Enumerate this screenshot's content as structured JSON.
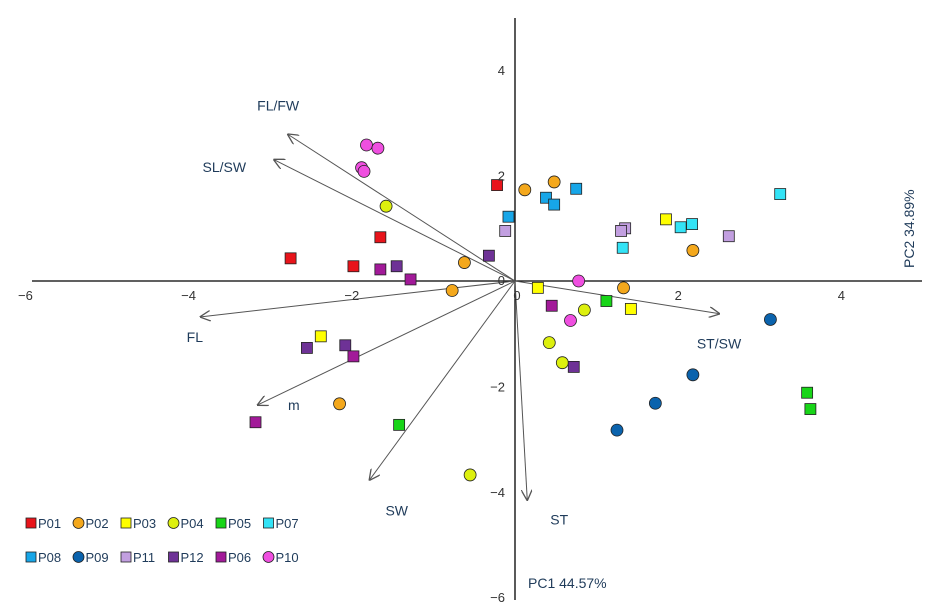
{
  "chart_data": {
    "type": "scatter",
    "title": "",
    "xlabel": "PC1 44.57%",
    "ylabel": "PC2 34.89%",
    "xlim": [
      -6,
      5
    ],
    "ylim": [
      -6,
      5
    ],
    "x_ticks": [
      "−6",
      "−4",
      "−2",
      "0",
      "2",
      "4"
    ],
    "y_ticks": [
      "4",
      "2",
      "0",
      "−2",
      "−4",
      "−6"
    ],
    "grid": false,
    "legend_position": "bottom-left",
    "series": [
      {
        "name": "P01",
        "marker": "square",
        "color": "#e8141b",
        "points": [
          [
            -2.75,
            0.43
          ],
          [
            -1.98,
            0.28
          ],
          [
            -1.65,
            0.83
          ],
          [
            -0.22,
            1.82
          ]
        ]
      },
      {
        "name": "P02",
        "marker": "circle",
        "color": "#f4a81c",
        "points": [
          [
            0.12,
            1.73
          ],
          [
            0.48,
            1.88
          ],
          [
            -0.62,
            0.35
          ],
          [
            -0.77,
            -0.18
          ],
          [
            1.33,
            -0.13
          ],
          [
            2.18,
            0.58
          ],
          [
            -2.15,
            -2.33
          ]
        ]
      },
      {
        "name": "P03",
        "marker": "square",
        "color": "#ffff00",
        "points": [
          [
            0.28,
            -0.13
          ],
          [
            1.42,
            -0.53
          ],
          [
            1.85,
            1.17
          ],
          [
            -2.38,
            -1.05
          ]
        ]
      },
      {
        "name": "P04",
        "marker": "circle",
        "color": "#ddf00e",
        "points": [
          [
            -1.58,
            1.42
          ],
          [
            0.85,
            -0.55
          ],
          [
            0.42,
            -1.17
          ],
          [
            0.58,
            -1.55
          ],
          [
            -0.55,
            -3.68
          ]
        ]
      },
      {
        "name": "P05",
        "marker": "square",
        "color": "#18d518",
        "points": [
          [
            1.12,
            -0.38
          ],
          [
            -1.42,
            -2.73
          ],
          [
            3.58,
            -2.12
          ],
          [
            3.62,
            -2.43
          ]
        ]
      },
      {
        "name": "P07",
        "marker": "square",
        "color": "#33e3f6",
        "points": [
          [
            1.32,
            0.63
          ],
          [
            2.03,
            1.02
          ],
          [
            2.17,
            1.08
          ],
          [
            3.25,
            1.65
          ]
        ]
      },
      {
        "name": "P08",
        "marker": "square",
        "color": "#17a6e8",
        "points": [
          [
            -0.08,
            1.22
          ],
          [
            0.38,
            1.58
          ],
          [
            0.48,
            1.45
          ],
          [
            0.75,
            1.75
          ]
        ]
      },
      {
        "name": "P09",
        "marker": "circle",
        "color": "#0b63ad",
        "points": [
          [
            3.13,
            -0.73
          ],
          [
            2.18,
            -1.78
          ],
          [
            1.72,
            -2.32
          ],
          [
            1.25,
            -2.83
          ]
        ]
      },
      {
        "name": "P11",
        "marker": "square",
        "color": "#c29fe0",
        "points": [
          [
            -0.12,
            0.95
          ],
          [
            1.35,
            1.0
          ],
          [
            1.3,
            0.95
          ],
          [
            2.62,
            0.85
          ]
        ]
      },
      {
        "name": "P12",
        "marker": "square",
        "color": "#6e3296",
        "points": [
          [
            -0.32,
            0.48
          ],
          [
            -1.45,
            0.28
          ],
          [
            -2.55,
            -1.27
          ],
          [
            -2.08,
            -1.22
          ],
          [
            0.72,
            -1.63
          ]
        ]
      },
      {
        "name": "P06",
        "marker": "square",
        "color": "#a21a99",
        "points": [
          [
            -1.65,
            0.22
          ],
          [
            -1.28,
            0.03
          ],
          [
            0.45,
            -0.47
          ],
          [
            -1.98,
            -1.43
          ],
          [
            -3.18,
            -2.68
          ]
        ]
      },
      {
        "name": "P10",
        "marker": "circle",
        "color": "#ef4fe0",
        "points": [
          [
            -1.82,
            2.58
          ],
          [
            -1.68,
            2.52
          ],
          [
            -1.88,
            2.15
          ],
          [
            -1.85,
            2.08
          ],
          [
            0.78,
            0.0
          ],
          [
            0.68,
            -0.75
          ]
        ]
      }
    ],
    "vectors": [
      {
        "label": "FL/FW",
        "x": -2.78,
        "y": 2.78
      },
      {
        "label": "SL/SW",
        "x": -2.95,
        "y": 2.3
      },
      {
        "label": "FL",
        "x": -3.85,
        "y": -0.68
      },
      {
        "label": "m",
        "x": -3.15,
        "y": -2.35
      },
      {
        "label": "SW",
        "x": -1.78,
        "y": -3.77
      },
      {
        "label": "ST",
        "x": 0.15,
        "y": -4.15
      },
      {
        "label": "ST/SW",
        "x": 2.5,
        "y": -0.62
      }
    ]
  }
}
